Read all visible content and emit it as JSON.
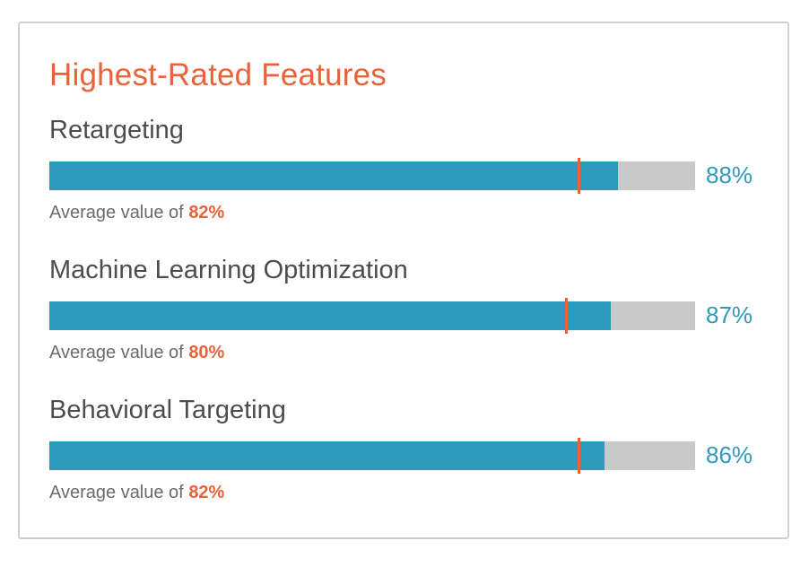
{
  "panel": {
    "title": "Highest-Rated Features"
  },
  "colors": {
    "title": "#e8633a",
    "bar_fill": "#2e9bbd",
    "bar_track": "#c9c9c9",
    "marker": "#e8633a",
    "score": "#2e9bbd",
    "avg_value": "#e8633a"
  },
  "features": [
    {
      "name": "Retargeting",
      "score": 88,
      "score_label": "88%",
      "avg_prefix": "Average value of",
      "avg": 82,
      "avg_label": "82%"
    },
    {
      "name": "Machine Learning Optimization",
      "score": 87,
      "score_label": "87%",
      "avg_prefix": "Average value of",
      "avg": 80,
      "avg_label": "80%"
    },
    {
      "name": "Behavioral Targeting",
      "score": 86,
      "score_label": "86%",
      "avg_prefix": "Average value of",
      "avg": 82,
      "avg_label": "82%"
    }
  ]
}
